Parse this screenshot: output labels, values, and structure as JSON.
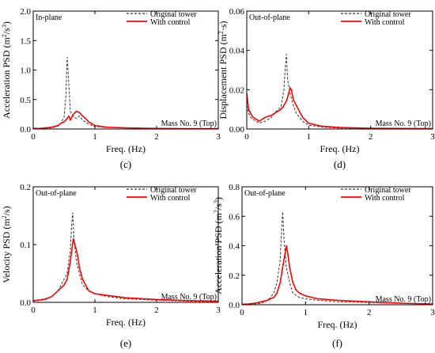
{
  "chart_data": [
    {
      "type": "line",
      "panel_label": "(c)",
      "plane_label": "In-plane",
      "location_label": "Mass No. 9 (Top)",
      "xlabel": "Freq. (Hz)",
      "ylabel": "Acceleration PSD (m²/s³)",
      "xlim": [
        0,
        3
      ],
      "ylim": [
        0,
        2.0
      ],
      "xticks": [
        "0",
        "1",
        "2",
        "3"
      ],
      "yticks": [
        "0.0",
        "0.5",
        "1.0",
        "1.5",
        "2.0"
      ],
      "legend_position": "top-right",
      "series": [
        {
          "name": "Original tower",
          "x": [
            0,
            0.1,
            0.2,
            0.3,
            0.4,
            0.45,
            0.5,
            0.53,
            0.55,
            0.57,
            0.6,
            0.63,
            0.66,
            0.7,
            0.75,
            0.8,
            0.9,
            1.0,
            1.2,
            1.5,
            2.0,
            2.5,
            3.0
          ],
          "y": [
            0.01,
            0.01,
            0.01,
            0.02,
            0.05,
            0.1,
            0.2,
            0.55,
            1.22,
            0.9,
            0.3,
            0.25,
            0.2,
            0.18,
            0.22,
            0.15,
            0.08,
            0.04,
            0.03,
            0.02,
            0.01,
            0.005,
            0.005
          ]
        },
        {
          "name": "With control",
          "x": [
            0,
            0.1,
            0.2,
            0.3,
            0.4,
            0.45,
            0.5,
            0.55,
            0.58,
            0.6,
            0.65,
            0.7,
            0.75,
            0.8,
            0.85,
            0.9,
            1.0,
            1.2,
            1.5,
            2.0,
            2.5,
            3.0
          ],
          "y": [
            0.01,
            0.01,
            0.02,
            0.03,
            0.06,
            0.1,
            0.12,
            0.18,
            0.22,
            0.15,
            0.25,
            0.3,
            0.28,
            0.22,
            0.18,
            0.12,
            0.06,
            0.03,
            0.02,
            0.01,
            0.005,
            0.005
          ]
        }
      ]
    },
    {
      "type": "line",
      "panel_label": "(d)",
      "plane_label": "Out-of-plane",
      "location_label": "Mass No. 9 (Top)",
      "xlabel": "Freq. (Hz)",
      "ylabel": "Displacement PSD (m²·s)",
      "xlim": [
        0,
        3
      ],
      "ylim": [
        0,
        0.06
      ],
      "xticks": [
        "0",
        "1",
        "2",
        "3"
      ],
      "yticks": [
        "0.00",
        "0.02",
        "0.04",
        "0.06"
      ],
      "legend_position": "top-right",
      "series": [
        {
          "name": "Original tower",
          "x": [
            0,
            0.03,
            0.06,
            0.1,
            0.15,
            0.2,
            0.3,
            0.4,
            0.5,
            0.55,
            0.6,
            0.62,
            0.64,
            0.66,
            0.7,
            0.75,
            0.8,
            0.9,
            1.0,
            1.2,
            1.5,
            2.0,
            3.0
          ],
          "y": [
            0.012,
            0.008,
            0.006,
            0.005,
            0.004,
            0.003,
            0.004,
            0.006,
            0.01,
            0.011,
            0.02,
            0.031,
            0.038,
            0.025,
            0.018,
            0.012,
            0.008,
            0.004,
            0.002,
            0.001,
            0.0005,
            0.0003,
            0.0002
          ]
        },
        {
          "name": "With control",
          "x": [
            0,
            0.03,
            0.06,
            0.1,
            0.15,
            0.2,
            0.3,
            0.4,
            0.5,
            0.55,
            0.6,
            0.65,
            0.7,
            0.72,
            0.75,
            0.8,
            0.9,
            1.0,
            1.2,
            1.5,
            2.0,
            3.0
          ],
          "y": [
            0.018,
            0.01,
            0.008,
            0.006,
            0.005,
            0.004,
            0.006,
            0.007,
            0.009,
            0.01,
            0.012,
            0.015,
            0.021,
            0.02,
            0.015,
            0.012,
            0.006,
            0.003,
            0.0015,
            0.0008,
            0.0004,
            0.0002
          ]
        }
      ]
    },
    {
      "type": "line",
      "panel_label": "(e)",
      "plane_label": "Out-of-plane",
      "location_label": "Mass No. 9 (Top)",
      "xlabel": "Freq. (Hz)",
      "ylabel": "Velocity PSD (m²/s)",
      "xlim": [
        0,
        3
      ],
      "ylim": [
        0,
        0.2
      ],
      "xticks": [
        "0",
        "1",
        "2",
        "3"
      ],
      "yticks": [
        "0.0",
        "0.1",
        "0.2"
      ],
      "legend_position": "top-right",
      "series": [
        {
          "name": "Original tower",
          "x": [
            0,
            0.1,
            0.2,
            0.3,
            0.4,
            0.45,
            0.5,
            0.55,
            0.6,
            0.62,
            0.64,
            0.66,
            0.7,
            0.75,
            0.8,
            0.9,
            1.0,
            1.2,
            1.5,
            2.0,
            2.5,
            3.0
          ],
          "y": [
            0.002,
            0.003,
            0.005,
            0.01,
            0.02,
            0.03,
            0.04,
            0.05,
            0.09,
            0.13,
            0.155,
            0.11,
            0.07,
            0.05,
            0.03,
            0.02,
            0.015,
            0.01,
            0.006,
            0.004,
            0.002,
            0.001
          ]
        },
        {
          "name": "With control",
          "x": [
            0,
            0.1,
            0.2,
            0.3,
            0.4,
            0.5,
            0.55,
            0.6,
            0.65,
            0.7,
            0.72,
            0.75,
            0.8,
            0.85,
            0.9,
            1.0,
            1.2,
            1.5,
            2.0,
            2.5,
            3.0
          ],
          "y": [
            0.003,
            0.004,
            0.006,
            0.01,
            0.02,
            0.03,
            0.04,
            0.07,
            0.11,
            0.09,
            0.08,
            0.06,
            0.04,
            0.03,
            0.02,
            0.015,
            0.012,
            0.008,
            0.005,
            0.003,
            0.002
          ]
        }
      ]
    },
    {
      "type": "line",
      "panel_label": "(f)",
      "plane_label": "Out-of-plane",
      "location_label": "Mass No. 9 (Top)",
      "xlabel": "Freq. (Hz)",
      "ylabel": "Acceleration PSD (m²/s³)",
      "xlim": [
        0,
        3
      ],
      "ylim": [
        0,
        0.8
      ],
      "xticks": [
        "0",
        "1",
        "2",
        "3"
      ],
      "yticks": [
        "0.0",
        "0.2",
        "0.4",
        "0.6",
        "0.8"
      ],
      "legend_position": "top-right",
      "series": [
        {
          "name": "Original tower",
          "x": [
            0,
            0.1,
            0.2,
            0.3,
            0.4,
            0.45,
            0.5,
            0.55,
            0.6,
            0.62,
            0.64,
            0.66,
            0.7,
            0.75,
            0.8,
            0.9,
            1.0,
            1.2,
            1.5,
            2.0,
            2.5,
            3.0
          ],
          "y": [
            0.002,
            0.003,
            0.006,
            0.01,
            0.03,
            0.05,
            0.08,
            0.15,
            0.3,
            0.48,
            0.63,
            0.45,
            0.25,
            0.15,
            0.08,
            0.05,
            0.04,
            0.03,
            0.02,
            0.015,
            0.01,
            0.005
          ]
        },
        {
          "name": "With control",
          "x": [
            0,
            0.1,
            0.2,
            0.3,
            0.4,
            0.5,
            0.55,
            0.6,
            0.65,
            0.7,
            0.72,
            0.75,
            0.8,
            0.85,
            0.9,
            1.0,
            1.2,
            1.5,
            2.0,
            2.5,
            3.0
          ],
          "y": [
            0.003,
            0.005,
            0.01,
            0.02,
            0.03,
            0.05,
            0.08,
            0.15,
            0.28,
            0.4,
            0.35,
            0.25,
            0.15,
            0.1,
            0.08,
            0.06,
            0.04,
            0.03,
            0.02,
            0.01,
            0.005
          ]
        }
      ]
    }
  ]
}
